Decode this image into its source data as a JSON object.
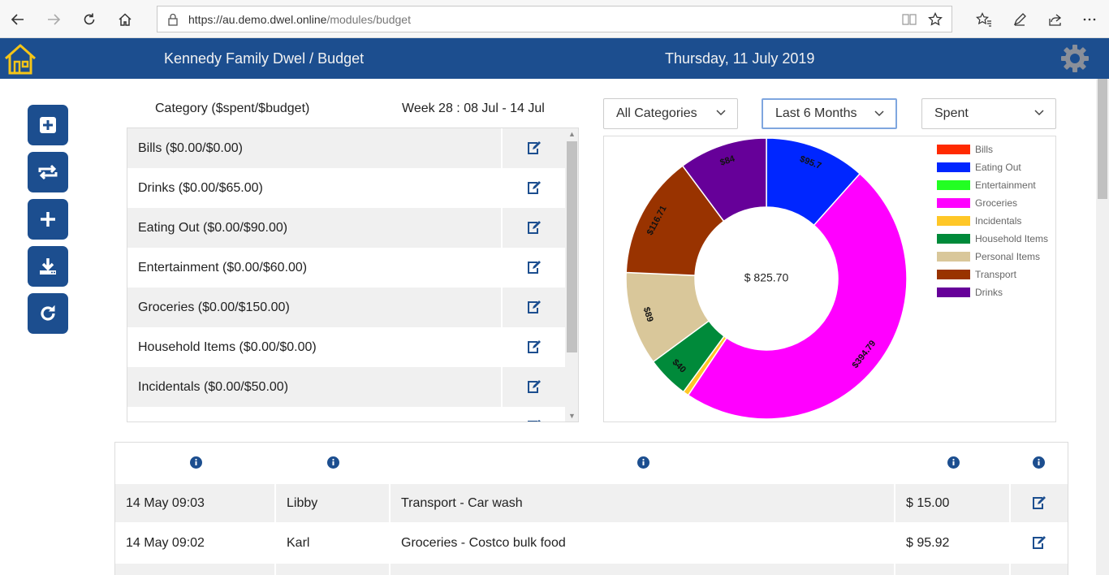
{
  "browser": {
    "url_host": "https://au.demo.dwel.online",
    "url_path": "/modules/budget"
  },
  "header": {
    "title": "Kennedy Family Dwel / Budget",
    "date": "Thursday, 11 July 2019"
  },
  "categories_panel": {
    "header_left": "Category ($spent/$budget)",
    "header_right": "Week 28 : 08 Jul - 14 Jul",
    "items": [
      {
        "label": "Bills ($0.00/$0.00)"
      },
      {
        "label": "Drinks ($0.00/$65.00)"
      },
      {
        "label": "Eating Out ($0.00/$90.00)"
      },
      {
        "label": "Entertainment ($0.00/$60.00)"
      },
      {
        "label": "Groceries ($0.00/$150.00)"
      },
      {
        "label": "Household Items ($0.00/$0.00)"
      },
      {
        "label": "Incidentals ($0.00/$50.00)"
      }
    ]
  },
  "filters": {
    "category": "All Categories",
    "period": "Last 6 Months",
    "metric": "Spent"
  },
  "chart_data": {
    "type": "pie",
    "center_label": "$ 825.70",
    "slices": [
      {
        "name": "Bills",
        "value": 0,
        "color": "#ff2a00",
        "label": ""
      },
      {
        "name": "Eating Out",
        "value": 95.7,
        "color": "#0026ff",
        "label": "$95.7"
      },
      {
        "name": "Entertainment",
        "value": 0,
        "color": "#22ff22",
        "label": ""
      },
      {
        "name": "Groceries",
        "value": 394.79,
        "color": "#ff00ff",
        "label": "$394.79"
      },
      {
        "name": "Incidentals",
        "value": 5.5,
        "color": "#ffc727",
        "label": ""
      },
      {
        "name": "Household Items",
        "value": 40,
        "color": "#008a3a",
        "label": "$40"
      },
      {
        "name": "Personal Items",
        "value": 89,
        "color": "#d9c79a",
        "label": "$89"
      },
      {
        "name": "Transport",
        "value": 116.71,
        "color": "#993300",
        "label": "$116.71"
      },
      {
        "name": "Drinks",
        "value": 84,
        "color": "#660099",
        "label": "$84"
      }
    ],
    "legend": [
      "Bills",
      "Eating Out",
      "Entertainment",
      "Groceries",
      "Incidentals",
      "Household Items",
      "Personal Items",
      "Transport",
      "Drinks"
    ],
    "legend_position": "right"
  },
  "transactions": {
    "rows": [
      {
        "date": "14 May 09:03",
        "user": "Libby",
        "description": "Transport - Car wash",
        "amount": "$ 15.00"
      },
      {
        "date": "14 May 09:02",
        "user": "Karl",
        "description": "Groceries - Costco bulk food",
        "amount": "$ 95.92"
      }
    ]
  },
  "colors": {
    "header_bg": "#1c4e8f",
    "home_icon": "#f5c518",
    "edit_icon": "#1c4e8f"
  }
}
